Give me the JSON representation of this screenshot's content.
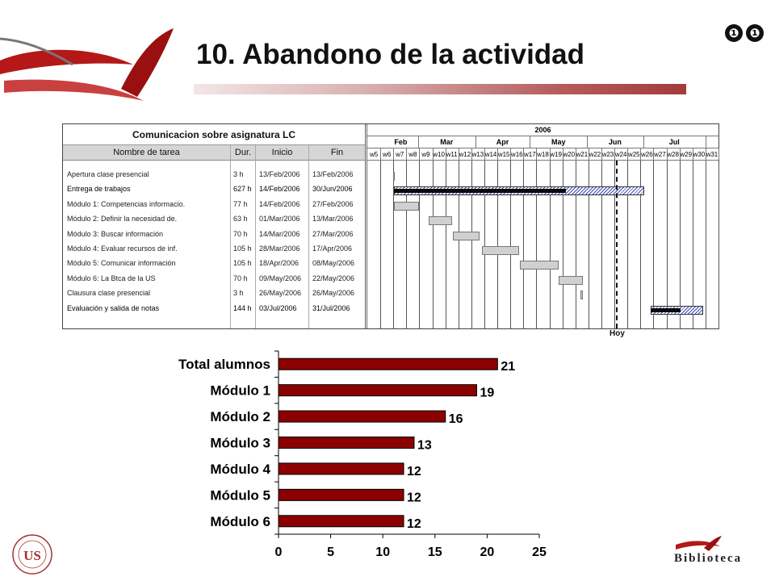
{
  "slide": {
    "title": "10. Abandono de la actividad",
    "nav_icons": [
      "❶",
      "❶"
    ]
  },
  "gantt": {
    "project_title": "Comunicacion sobre asignatura LC",
    "columns": [
      "Nombre de tarea",
      "Dur.",
      "Inicio",
      "Fin"
    ],
    "year_label": "2006",
    "months": [
      "Feb",
      "Mar",
      "Apr",
      "May",
      "Jun",
      "Jul"
    ],
    "weeks": [
      "w5",
      "w6",
      "w7",
      "w8",
      "w9",
      "w10",
      "w11",
      "w12",
      "w13",
      "w14",
      "w15",
      "w16",
      "w17",
      "w18",
      "w19",
      "w20",
      "w21",
      "w22",
      "w23",
      "w24",
      "w25",
      "w26",
      "w27",
      "w28",
      "w29",
      "w30",
      "w31"
    ],
    "tasks": [
      {
        "name": "Apertura clase presencial",
        "dur": "3 h",
        "start": "13/Feb/2006",
        "end": "13/Feb/2006",
        "bold": false
      },
      {
        "name": "Entrega de trabajos",
        "dur": "627 h",
        "start": "14/Feb/2006",
        "end": "30/Jun/2006",
        "bold": true
      },
      {
        "name": "Módulo 1: Competencias informacio.",
        "dur": "77 h",
        "start": "14/Feb/2006",
        "end": "27/Feb/2006",
        "bold": false
      },
      {
        "name": "Módulo 2: Definir la necesidad de.",
        "dur": "63 h",
        "start": "01/Mar/2006",
        "end": "13/Mar/2006",
        "bold": false
      },
      {
        "name": "Módulo 3: Buscar información",
        "dur": "70 h",
        "start": "14/Mar/2006",
        "end": "27/Mar/2006",
        "bold": false
      },
      {
        "name": "Módulo 4: Evaluar recursos de inf.",
        "dur": "105 h",
        "start": "28/Mar/2006",
        "end": "17/Apr/2006",
        "bold": false
      },
      {
        "name": "Módulo 5: Comunicar información",
        "dur": "105 h",
        "start": "18/Apr/2006",
        "end": "08/May/2006",
        "bold": false
      },
      {
        "name": "Módulo 6: La Btca de la US",
        "dur": "70 h",
        "start": "09/May/2006",
        "end": "22/May/2006",
        "bold": false
      },
      {
        "name": "Clausura clase presencial",
        "dur": "3 h",
        "start": "26/May/2006",
        "end": "26/May/2006",
        "bold": false
      },
      {
        "name": "Evaluación y salida de notas",
        "dur": "144 h",
        "start": "03/Jul/2006",
        "end": "31/Jul/2006",
        "bold": true
      }
    ],
    "bars": [
      {
        "style": "gray",
        "start_week": 7.0,
        "end_week": 7.1
      },
      {
        "style": "hatch",
        "start_week": 7.05,
        "end_week": 26.3,
        "progress_end_week": 20.3
      },
      {
        "style": "gray",
        "start_week": 7.05,
        "end_week": 9.0
      },
      {
        "style": "gray",
        "start_week": 9.7,
        "end_week": 11.5
      },
      {
        "style": "gray",
        "start_week": 11.6,
        "end_week": 13.6
      },
      {
        "style": "gray",
        "start_week": 13.8,
        "end_week": 16.7
      },
      {
        "style": "gray",
        "start_week": 16.7,
        "end_week": 19.7
      },
      {
        "style": "gray",
        "start_week": 19.7,
        "end_week": 21.6
      },
      {
        "style": "gray",
        "start_week": 21.4,
        "end_week": 21.55
      },
      {
        "style": "hatch",
        "start_week": 26.8,
        "end_week": 30.8,
        "progress_end_week": 29.1
      }
    ],
    "today_week": 24.1,
    "today_label": "Hoy"
  },
  "chart_data": {
    "type": "bar",
    "orientation": "horizontal",
    "categories": [
      "Total alumnos",
      "Módulo 1",
      "Módulo 2",
      "Módulo 3",
      "Módulo 4",
      "Módulo 5",
      "Módulo 6"
    ],
    "values": [
      21,
      19,
      16,
      13,
      12,
      12,
      12
    ],
    "xlim": [
      0,
      25
    ],
    "xticks": [
      0,
      5,
      10,
      15,
      20,
      25
    ],
    "bar_color": "#8b0000",
    "grid": false,
    "legend": false,
    "title": ""
  },
  "footer": {
    "library_name": "Biblioteca",
    "library_subtitle": "UNIVERSIDAD DE SEVILLA",
    "university_text": "UNIVERSIDAD DE SEVILLA",
    "university_initials": "US"
  },
  "colors": {
    "accent": "#a43b3b",
    "bar": "#8b0000"
  }
}
